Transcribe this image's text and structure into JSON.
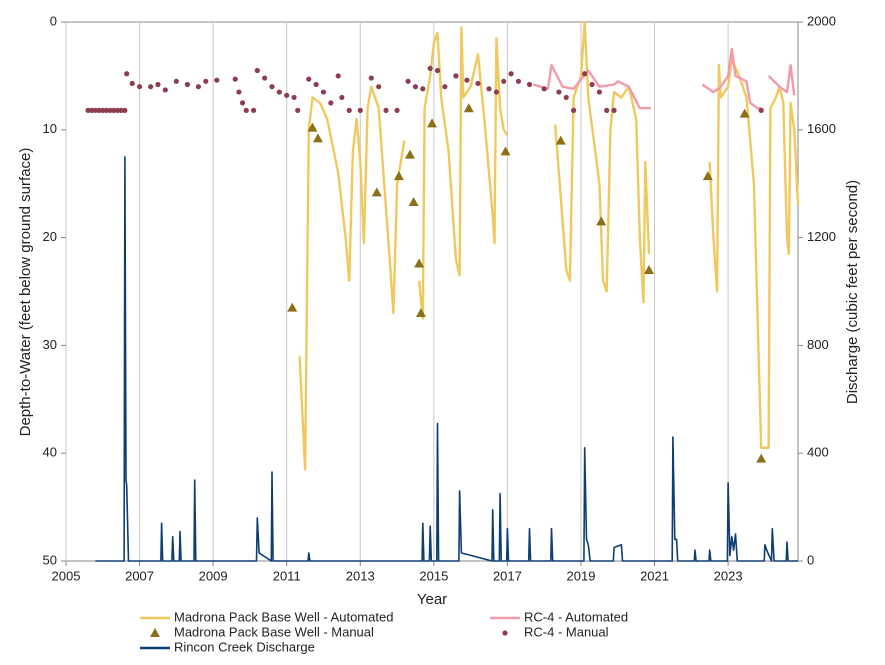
{
  "chart_data": {
    "type": "line",
    "xlabel": "Year",
    "ylabel": "Depth-to-Water (feet below ground surface)",
    "y2label": "Discharge (cubic feet per second)",
    "xlim": [
      2005,
      2024.9
    ],
    "xticks": [
      2005,
      2007,
      2009,
      2011,
      2013,
      2015,
      2017,
      2019,
      2021,
      2023
    ],
    "ylim": [
      0,
      50
    ],
    "yticks": [
      0,
      10,
      20,
      30,
      40,
      50
    ],
    "y_inverted": true,
    "y2lim": [
      0,
      2000
    ],
    "y2ticks": [
      0,
      400,
      800,
      1200,
      1600,
      2000
    ],
    "xgrid": true,
    "legend": "bottom",
    "series": [
      {
        "name": "Madrona Pack Base Well - Automated",
        "color": "#f0c95e",
        "style": "line",
        "x": [
          2011.35,
          2011.5,
          2011.6,
          2011.7,
          2011.9,
          2012.1,
          2012.4,
          2012.6,
          2012.7,
          2012.8,
          2012.9,
          2013.0,
          2013.1,
          2013.2,
          2013.3,
          2013.5,
          2013.8,
          2013.9,
          2014.0,
          2014.2,
          null,
          2014.6,
          2014.7,
          2014.75,
          2014.9,
          2015.0,
          2015.1,
          2015.2,
          2015.4,
          2015.6,
          2015.7,
          2015.75,
          2015.8,
          2016.0,
          2016.2,
          2016.4,
          2016.6,
          2016.65,
          2016.7,
          2016.8,
          2016.9,
          2017.0,
          null,
          2018.3,
          2018.4,
          2018.6,
          2018.7,
          2018.8,
          2019.0,
          2019.1,
          2019.2,
          2019.5,
          2019.6,
          2019.7,
          2019.8,
          2019.9,
          2020.1,
          2020.3,
          2020.5,
          2020.6,
          2020.7,
          2020.75,
          2020.85,
          null,
          2022.5,
          2022.6,
          2022.7,
          2022.75,
          2022.8,
          2023.0,
          2023.1,
          2023.3,
          2023.5,
          2023.7,
          2023.9,
          2024.1,
          2024.15,
          2024.3,
          2024.4,
          2024.5,
          2024.6,
          2024.65,
          2024.7,
          2024.8,
          2024.9
        ],
        "values": [
          31,
          41.5,
          10,
          7,
          7.5,
          9,
          14,
          20,
          24,
          12,
          9,
          13,
          20.5,
          8,
          6,
          8,
          22,
          27,
          15,
          11,
          null,
          24,
          27.5,
          8,
          5,
          2,
          1,
          7,
          12,
          22,
          23.5,
          0.5,
          7,
          6,
          3,
          10,
          18,
          20.5,
          1.5,
          8,
          10,
          10.5,
          null,
          9.5,
          14,
          23,
          24,
          7,
          5,
          0,
          7,
          15,
          24,
          25,
          10,
          6.5,
          7,
          6,
          9,
          20,
          26,
          13,
          21.5,
          null,
          13,
          20,
          25,
          4,
          7,
          6,
          3.5,
          5,
          7,
          15,
          39.5,
          39.5,
          8,
          7,
          6,
          7.5,
          20,
          21.5,
          7.5,
          10,
          17
        ]
      },
      {
        "name": "RC-4 - Automated",
        "color": "#f29aaa",
        "style": "line",
        "x": [
          2017.7,
          2018.1,
          2018.2,
          2018.5,
          2018.8,
          2019.2,
          2019.5,
          2019.9,
          2020.0,
          2020.3,
          2020.6,
          2020.9,
          null,
          2022.3,
          2022.6,
          2022.8,
          2023.0,
          2023.1,
          2023.2,
          2023.5,
          2023.6,
          2023.8,
          2023.9,
          null,
          2024.1,
          2024.4,
          2024.6,
          2024.7,
          2024.8
        ],
        "values": [
          5.8,
          6.2,
          4,
          6,
          6.2,
          4.5,
          6,
          5.8,
          5.5,
          6,
          8,
          8,
          null,
          5.8,
          6.5,
          6,
          5,
          2.5,
          5,
          5.5,
          7.5,
          8,
          8,
          null,
          5,
          6,
          6.5,
          4,
          6.8
        ]
      },
      {
        "name": "Madrona Pack Base Well - Manual",
        "color": "#8b7019",
        "style": "markers",
        "marker": "triangle",
        "x": [
          2011.15,
          2011.7,
          2011.85,
          2013.45,
          2014.05,
          2014.35,
          2014.45,
          2014.6,
          2014.65,
          2014.95,
          2015.95,
          2016.95,
          2018.45,
          2019.55,
          2020.85,
          2022.45,
          2023.45,
          2023.9
        ],
        "values": [
          26.5,
          9.8,
          10.8,
          15.8,
          14.3,
          12.3,
          16.7,
          22.4,
          27,
          9.4,
          8,
          12,
          11,
          18.5,
          23,
          14.3,
          8.5,
          40.5
        ]
      },
      {
        "name": "RC-4 - Manual",
        "color": "#8e3c50",
        "style": "markers",
        "marker": "circle",
        "x": [
          2005.6,
          2005.7,
          2005.8,
          2005.9,
          2006.0,
          2006.1,
          2006.2,
          2006.3,
          2006.4,
          2006.5,
          2006.6,
          2006.65,
          2006.8,
          2007.0,
          2007.3,
          2007.5,
          2007.7,
          2008.0,
          2008.3,
          2008.6,
          2008.8,
          2009.1,
          2009.6,
          2009.7,
          2009.8,
          2009.9,
          2010.1,
          2010.2,
          2010.4,
          2010.6,
          2010.8,
          2011.0,
          2011.2,
          2011.3,
          2011.6,
          2011.8,
          2012.0,
          2012.2,
          2012.4,
          2012.5,
          2012.7,
          2013.0,
          2013.3,
          2013.5,
          2013.7,
          2014.0,
          2014.3,
          2014.5,
          2014.7,
          2014.9,
          2015.1,
          2015.3,
          2015.6,
          2015.9,
          2016.2,
          2016.5,
          2016.7,
          2016.9,
          2017.1,
          2017.3,
          2017.6,
          2018.0,
          2018.4,
          2018.6,
          2018.8,
          2019.1,
          2019.3,
          2019.5,
          2019.7,
          2019.9,
          2023.9
        ],
        "values": [
          8.2,
          8.2,
          8.2,
          8.2,
          8.2,
          8.2,
          8.2,
          8.2,
          8.2,
          8.2,
          8.2,
          4.8,
          5.7,
          6,
          6,
          5.8,
          6.3,
          5.5,
          5.8,
          6,
          5.5,
          5.4,
          5.3,
          6.5,
          7.5,
          8.2,
          8.2,
          4.5,
          5.2,
          6,
          6.5,
          6.8,
          7,
          8.2,
          5.3,
          5.8,
          6.5,
          7.5,
          5,
          7,
          8.2,
          8.2,
          5.2,
          6,
          8.2,
          8.2,
          5.5,
          6,
          6.2,
          4.3,
          4.5,
          6,
          5,
          5.4,
          5.7,
          6.2,
          6.5,
          5.5,
          4.8,
          5.5,
          5.8,
          6.2,
          6.5,
          7,
          8.2,
          4.8,
          5.8,
          6.5,
          8.2,
          8.2,
          8.2
        ]
      },
      {
        "name": "Rincon Creek Discharge",
        "color": "#0d3d73",
        "style": "line",
        "axis": "y2",
        "x": [
          2005.8,
          2006.58,
          2006.6,
          2006.63,
          2006.65,
          2006.7,
          2007.58,
          2007.6,
          2007.63,
          2007.88,
          2007.9,
          2007.93,
          2008.08,
          2008.1,
          2008.13,
          2008.48,
          2008.5,
          2008.53,
          2010.18,
          2010.2,
          2010.25,
          2010.58,
          2010.6,
          2010.63,
          2011.58,
          2011.6,
          2011.63,
          2014.68,
          2014.7,
          2014.73,
          2014.88,
          2014.9,
          2014.93,
          2015.08,
          2015.1,
          2015.13,
          2015.68,
          2015.7,
          2015.75,
          2016.58,
          2016.6,
          2016.63,
          2016.78,
          2016.8,
          2016.83,
          2016.98,
          2017.0,
          2017.03,
          2017.58,
          2017.6,
          2017.63,
          2018.18,
          2018.2,
          2018.23,
          2019.08,
          2019.1,
          2019.15,
          2019.2,
          2019.25,
          2019.88,
          2019.9,
          2020.1,
          2020.13,
          2021.48,
          2021.5,
          2021.55,
          2021.6,
          2021.63,
          2022.08,
          2022.1,
          2022.13,
          2022.48,
          2022.5,
          2022.53,
          2022.98,
          2023.0,
          2023.05,
          2023.1,
          2023.15,
          2023.2,
          2023.25,
          2023.98,
          2024.0,
          2024.05,
          2024.18,
          2024.2,
          2024.25,
          2024.58,
          2024.6,
          2024.63,
          2024.9
        ],
        "values": [
          0,
          0,
          1500,
          300,
          280,
          0,
          0,
          140,
          0,
          0,
          90,
          0,
          0,
          110,
          0,
          0,
          300,
          0,
          0,
          160,
          30,
          0,
          330,
          0,
          0,
          30,
          0,
          0,
          140,
          0,
          0,
          130,
          0,
          0,
          510,
          0,
          0,
          260,
          30,
          0,
          190,
          0,
          0,
          250,
          0,
          0,
          120,
          0,
          0,
          120,
          0,
          0,
          120,
          0,
          0,
          420,
          80,
          60,
          0,
          0,
          50,
          60,
          0,
          0,
          460,
          80,
          80,
          0,
          0,
          40,
          0,
          0,
          40,
          0,
          0,
          290,
          20,
          90,
          40,
          100,
          0,
          0,
          60,
          40,
          0,
          120,
          0,
          0,
          70,
          0,
          0
        ]
      }
    ]
  }
}
